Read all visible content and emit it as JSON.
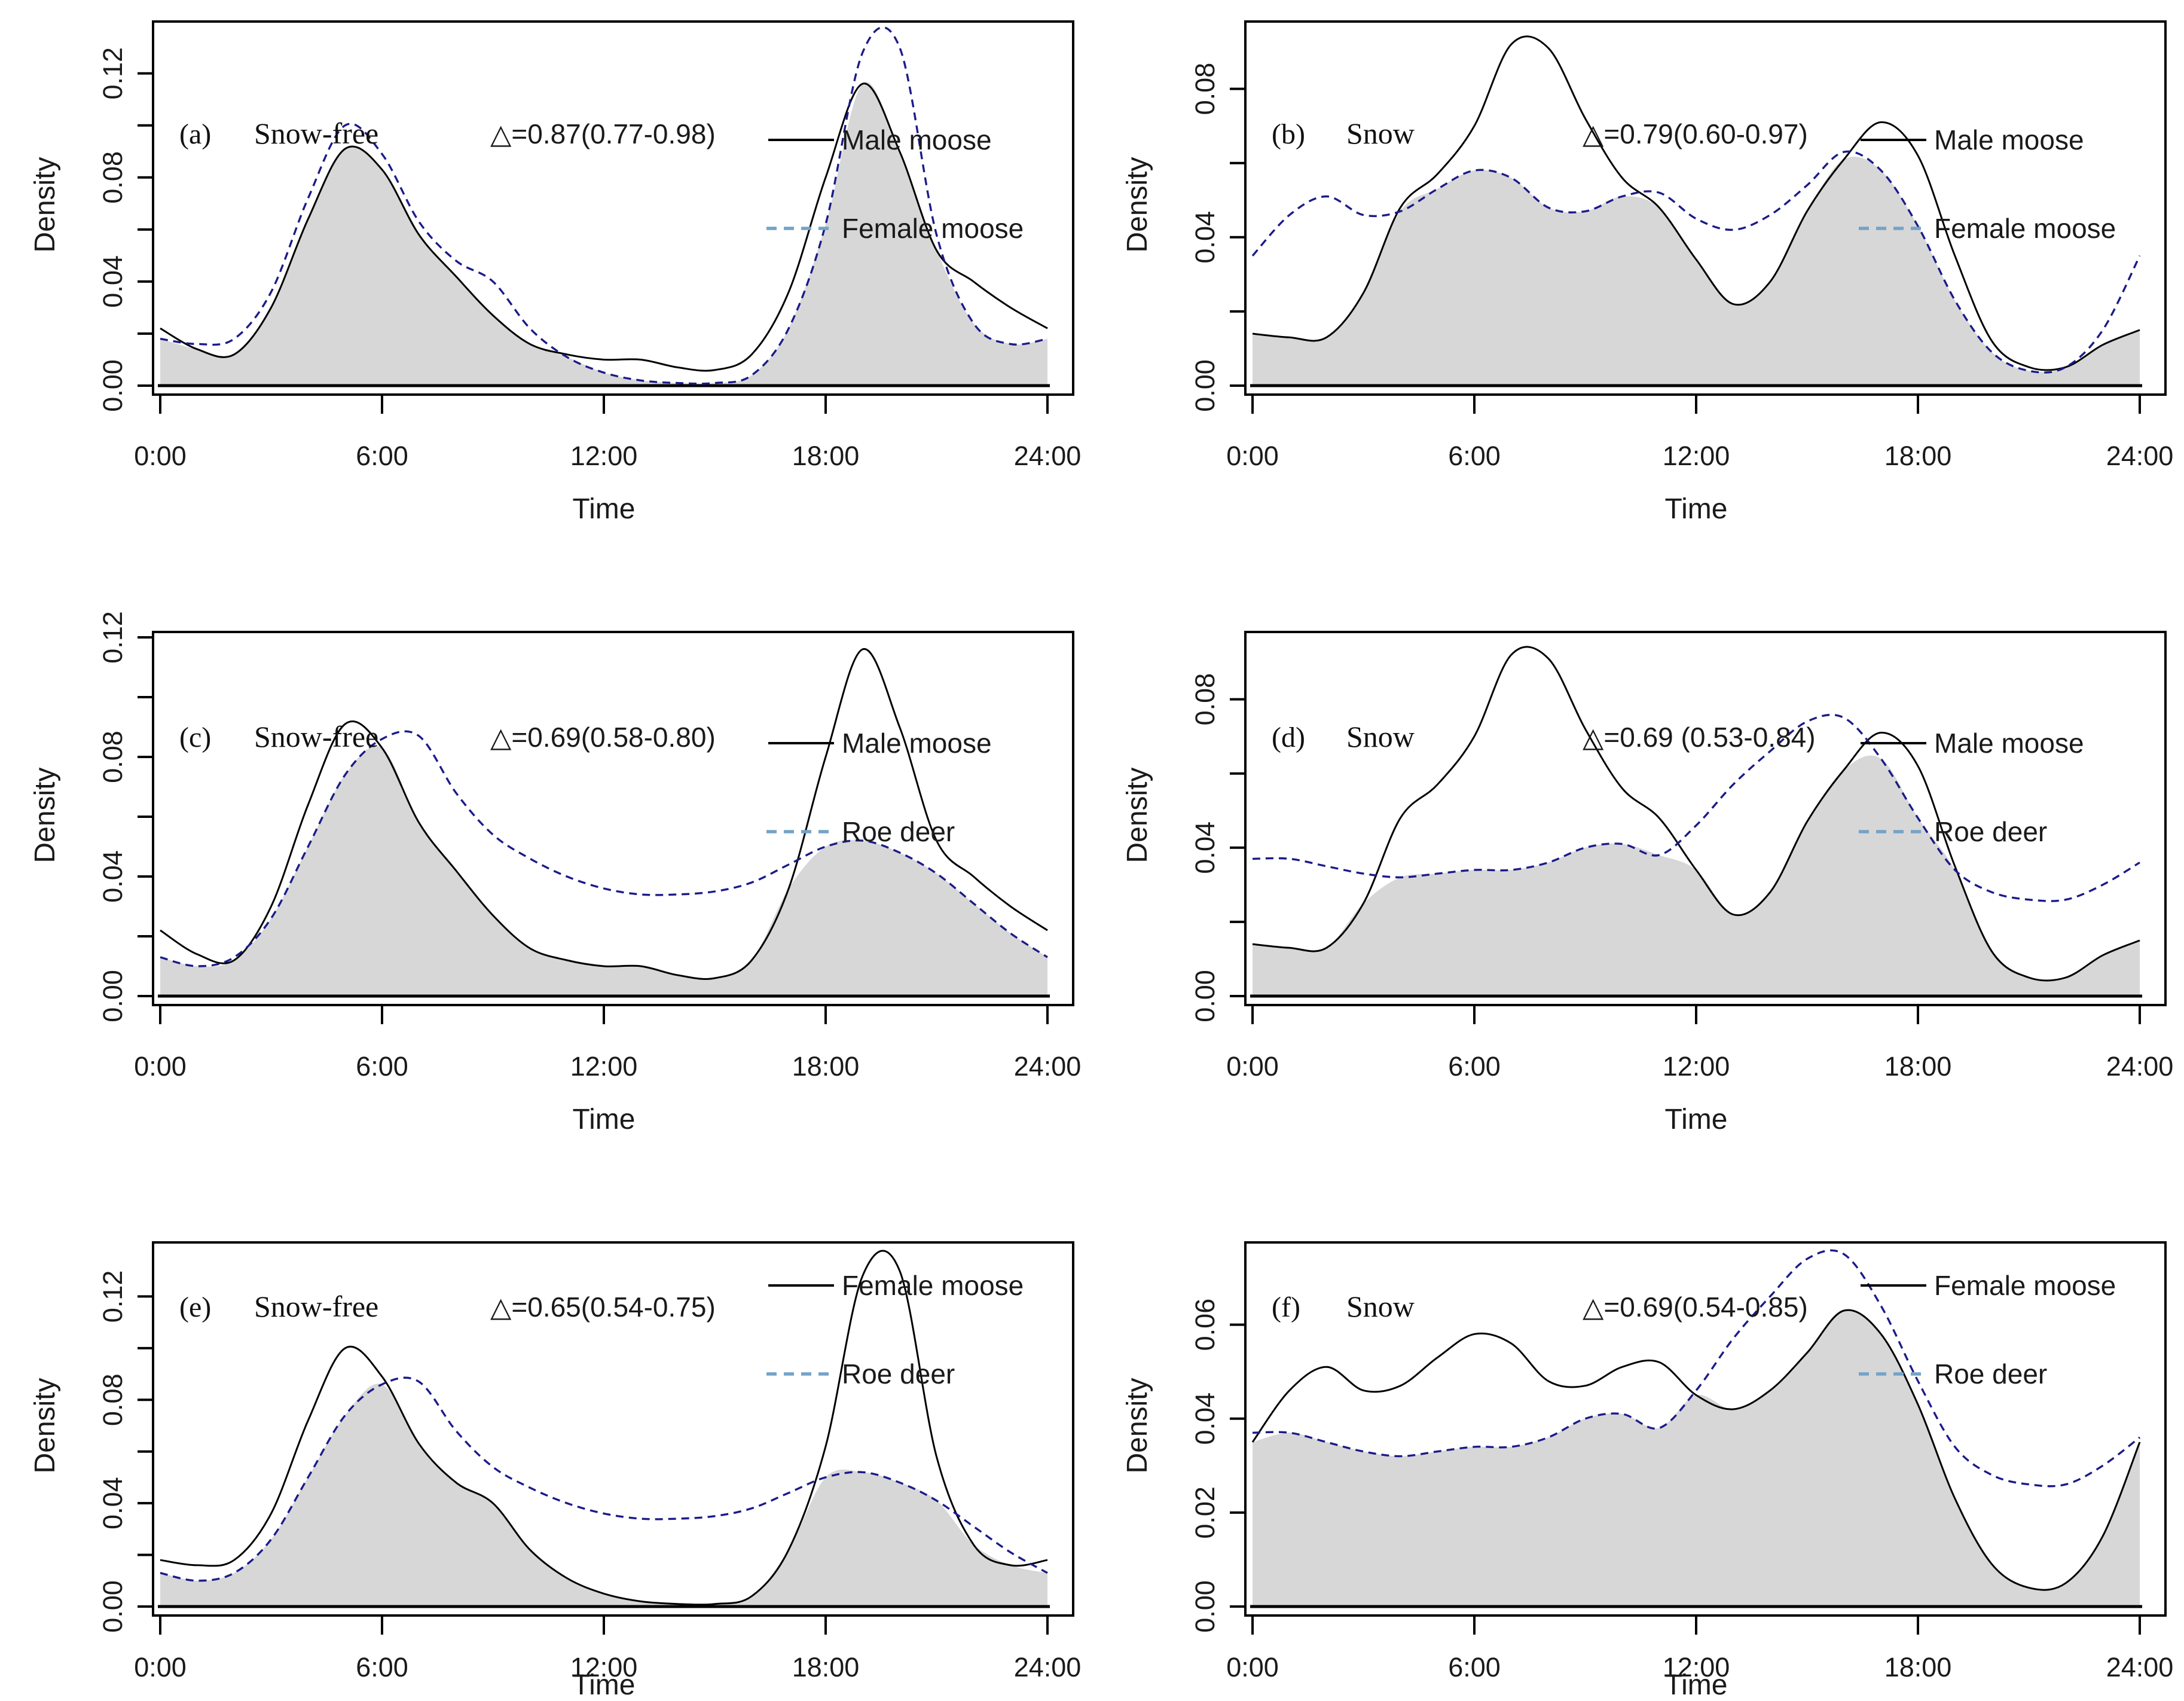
{
  "figure_title": "",
  "chart_data": {
    "type": "area",
    "description": "Six kernel-density activity-overlap panels (2 columns x 3 rows). Solid black curve vs dashed navy curve; gray shaded region is the overlap (minimum of the two densities).",
    "xlabel": "Time",
    "ylabel": "Density",
    "x_hours": [
      0,
      1,
      2,
      3,
      4,
      5,
      6,
      7,
      8,
      9,
      10,
      11,
      12,
      13,
      14,
      15,
      16,
      17,
      18,
      19,
      20,
      21,
      22,
      23,
      24
    ],
    "x_tick_hours": [
      0,
      6,
      12,
      18,
      24
    ],
    "x_tick_labels": [
      "0:00",
      "6:00",
      "12:00",
      "18:00",
      "24:00"
    ],
    "grid": false,
    "legend_position": "top-right-inside",
    "overlap_shading": "gray area = min(solid, dashed)",
    "colors": {
      "solid_curve": "#000000",
      "dashed_curve": "#1b1b8a",
      "legend_dash_swatch": "#74a3c7",
      "overlap_fill": "#d7d7d7",
      "frame": "#000000"
    },
    "series_library": {
      "male_moose_snowfree": [
        0.022,
        0.014,
        0.012,
        0.03,
        0.064,
        0.091,
        0.083,
        0.058,
        0.042,
        0.027,
        0.016,
        0.012,
        0.01,
        0.01,
        0.007,
        0.006,
        0.012,
        0.036,
        0.08,
        0.116,
        0.09,
        0.052,
        0.04,
        0.03,
        0.022
      ],
      "female_moose_snowfree": [
        0.018,
        0.016,
        0.018,
        0.036,
        0.072,
        0.1,
        0.089,
        0.063,
        0.048,
        0.04,
        0.022,
        0.011,
        0.005,
        0.002,
        0.001,
        0.001,
        0.004,
        0.022,
        0.062,
        0.128,
        0.13,
        0.058,
        0.024,
        0.016,
        0.018
      ],
      "roe_deer_snowfree": [
        0.013,
        0.01,
        0.013,
        0.026,
        0.05,
        0.074,
        0.086,
        0.087,
        0.068,
        0.054,
        0.046,
        0.04,
        0.036,
        0.034,
        0.034,
        0.035,
        0.038,
        0.044,
        0.05,
        0.052,
        0.048,
        0.041,
        0.031,
        0.021,
        0.013
      ],
      "male_moose_snow": [
        0.014,
        0.013,
        0.013,
        0.025,
        0.048,
        0.057,
        0.07,
        0.092,
        0.091,
        0.072,
        0.056,
        0.048,
        0.034,
        0.022,
        0.028,
        0.047,
        0.061,
        0.071,
        0.062,
        0.035,
        0.012,
        0.005,
        0.005,
        0.011,
        0.015
      ],
      "female_moose_snow": [
        0.035,
        0.046,
        0.051,
        0.046,
        0.047,
        0.053,
        0.058,
        0.056,
        0.048,
        0.047,
        0.051,
        0.052,
        0.045,
        0.042,
        0.046,
        0.054,
        0.063,
        0.058,
        0.043,
        0.023,
        0.009,
        0.004,
        0.005,
        0.015,
        0.035
      ],
      "roe_deer_snow": [
        0.037,
        0.037,
        0.035,
        0.033,
        0.032,
        0.033,
        0.034,
        0.034,
        0.036,
        0.04,
        0.041,
        0.038,
        0.046,
        0.057,
        0.066,
        0.074,
        0.075,
        0.064,
        0.048,
        0.034,
        0.028,
        0.026,
        0.026,
        0.03,
        0.036
      ]
    },
    "panels": [
      {
        "id": "a",
        "label": "(a)",
        "condition": "Snow-free",
        "delta": "△=0.87(0.77-0.98)",
        "solid": {
          "label": "Male moose",
          "series_key": "male_moose_snowfree"
        },
        "dashed": {
          "label": "Female moose",
          "series_key": "female_moose_snowfree"
        },
        "ylim": [
          0,
          0.139
        ],
        "y_tick_values": [
          0,
          0.02,
          0.04,
          0.06,
          0.08,
          0.1,
          0.12
        ],
        "y_tick_labels": [
          "0.00",
          "",
          "0.04",
          "",
          "0.08",
          "",
          "0.12"
        ]
      },
      {
        "id": "b",
        "label": "(b)",
        "condition": "Snow",
        "delta": "△=0.79(0.60-0.97)",
        "solid": {
          "label": "Male moose",
          "series_key": "male_moose_snow"
        },
        "dashed": {
          "label": "Female moose",
          "series_key": "female_moose_snow"
        },
        "ylim": [
          0,
          0.0975
        ],
        "y_tick_values": [
          0,
          0.02,
          0.04,
          0.06,
          0.08
        ],
        "y_tick_labels": [
          "0.00",
          "",
          "0.04",
          "",
          "0.08"
        ]
      },
      {
        "id": "c",
        "label": "(c)",
        "condition": "Snow-free",
        "delta": "△=0.69(0.58-0.80)",
        "solid": {
          "label": "Male moose",
          "series_key": "male_moose_snowfree"
        },
        "dashed": {
          "label": "Roe deer",
          "series_key": "roe_deer_snowfree"
        },
        "ylim": [
          0,
          0.121
        ],
        "y_tick_values": [
          0,
          0.02,
          0.04,
          0.06,
          0.08,
          0.1,
          0.12
        ],
        "y_tick_labels": [
          "0.00",
          "",
          "0.04",
          "",
          "0.08",
          "",
          "0.12"
        ]
      },
      {
        "id": "d",
        "label": "(d)",
        "condition": "Snow",
        "delta": "△=0.69 (0.53-0.84)",
        "solid": {
          "label": "Male moose",
          "series_key": "male_moose_snow"
        },
        "dashed": {
          "label": "Roe deer",
          "series_key": "roe_deer_snow"
        },
        "ylim": [
          0,
          0.0975
        ],
        "y_tick_values": [
          0,
          0.02,
          0.04,
          0.06,
          0.08
        ],
        "y_tick_labels": [
          "0.00",
          "",
          "0.04",
          "",
          "0.08"
        ]
      },
      {
        "id": "e",
        "label": "(e)",
        "condition": "Snow-free",
        "delta": "△=0.65(0.54-0.75)",
        "solid": {
          "label": "Female moose",
          "series_key": "female_moose_snowfree"
        },
        "dashed": {
          "label": "Roe deer",
          "series_key": "roe_deer_snowfree"
        },
        "ylim": [
          0,
          0.14
        ],
        "y_tick_values": [
          0,
          0.02,
          0.04,
          0.06,
          0.08,
          0.1,
          0.12
        ],
        "y_tick_labels": [
          "0.00",
          "",
          "0.04",
          "",
          "0.08",
          "",
          "0.12"
        ]
      },
      {
        "id": "f",
        "label": "(f)",
        "condition": "Snow",
        "delta": "△=0.69(0.54-0.85)",
        "solid": {
          "label": "Female moose",
          "series_key": "female_moose_snow"
        },
        "dashed": {
          "label": "Roe deer",
          "series_key": "roe_deer_snow"
        },
        "ylim": [
          0,
          0.077
        ],
        "y_tick_values": [
          0,
          0.02,
          0.04,
          0.06
        ],
        "y_tick_labels": [
          "0.00",
          "0.02",
          "0.04",
          "0.06"
        ]
      }
    ]
  }
}
